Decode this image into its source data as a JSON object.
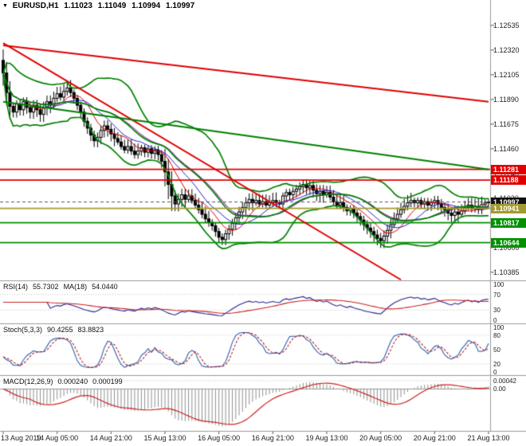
{
  "chart_data": {
    "type": "candlestick",
    "title": "EURUSD,H1",
    "header": {
      "symbol": "EURUSD,H1",
      "open": "1.11023",
      "high": "1.11049",
      "low": "1.10994",
      "close": "1.10997"
    },
    "y_axis": {
      "ticks": [
        "1.12535",
        "1.12320",
        "1.12105",
        "1.11890",
        "1.11675",
        "1.11460",
        "1.11245",
        "1.11030",
        "1.10815",
        "1.10600",
        "1.10385"
      ]
    },
    "x_labels": [
      {
        "label": "13 Aug 2019",
        "bar": 0
      },
      {
        "label": "14 Aug 05:00",
        "bar": 16
      },
      {
        "label": "14 Aug 21:00",
        "bar": 32
      },
      {
        "label": "15 Aug 13:00",
        "bar": 48
      },
      {
        "label": "16 Aug 05:00",
        "bar": 64
      },
      {
        "label": "16 Aug 21:00",
        "bar": 80
      },
      {
        "label": "19 Aug 13:00",
        "bar": 96
      },
      {
        "label": "20 Aug 05:00",
        "bar": 112
      },
      {
        "label": "20 Aug 21:00",
        "bar": 128
      },
      {
        "label": "21 Aug 13:00",
        "bar": 144
      }
    ],
    "first_open": 1.1223,
    "closes": [
      1.1212,
      1.1195,
      1.1183,
      1.1178,
      1.1185,
      1.118,
      1.1187,
      1.1182,
      1.1178,
      1.1184,
      1.118,
      1.1176,
      1.1182,
      1.1187,
      1.1184,
      1.119,
      1.1194,
      1.1191,
      1.1196,
      1.1199,
      1.1195,
      1.119,
      1.1184,
      1.1178,
      1.117,
      1.1164,
      1.1158,
      1.1153,
      1.1156,
      1.1162,
      1.1166,
      1.1163,
      1.1159,
      1.1155,
      1.1152,
      1.1148,
      1.1145,
      1.1148,
      1.1144,
      1.1141,
      1.1144,
      1.1147,
      1.1143,
      1.1146,
      1.1142,
      1.1145,
      1.1141,
      1.1135,
      1.1126,
      1.1115,
      1.1105,
      1.1098,
      1.1102,
      1.1106,
      1.1102,
      1.1105,
      1.1101,
      1.1097,
      1.1093,
      1.1089,
      1.1085,
      1.1082,
      1.1079,
      1.1074,
      1.1069,
      1.1067,
      1.1072,
      1.1076,
      1.1081,
      1.1086,
      1.1091,
      1.1095,
      1.1099,
      1.1102,
      1.1099,
      1.1101,
      1.1098,
      1.11,
      1.1097,
      1.1099,
      1.1101,
      1.1099,
      1.1098,
      1.1105,
      1.1108,
      1.1106,
      1.1109,
      1.1111,
      1.1113,
      1.1115,
      1.1112,
      1.1114,
      1.111,
      1.1107,
      1.1109,
      1.1106,
      1.1108,
      1.1104,
      1.11,
      1.1097,
      1.1099,
      1.1095,
      1.1092,
      1.1094,
      1.109,
      1.1087,
      1.1084,
      1.108,
      1.1077,
      1.1074,
      1.1071,
      1.1068,
      1.1066,
      1.107,
      1.1075,
      1.108,
      1.1085,
      1.1089,
      1.1093,
      1.1096,
      1.1099,
      1.1101,
      1.1099,
      1.1101,
      1.1098,
      1.11,
      1.1097,
      1.1099,
      1.1101,
      1.1098,
      1.1095,
      1.1093,
      1.109,
      1.1088,
      1.1091,
      1.1089,
      1.1092,
      1.1095,
      1.1097,
      1.1094,
      1.1096,
      1.1093,
      1.10975,
      1.1099,
      1.10997
    ],
    "badges": [
      {
        "label": "1.11281",
        "price": 1.11281,
        "color": "#e00000"
      },
      {
        "label": "1.11188",
        "price": 1.11188,
        "color": "#e00000"
      },
      {
        "label": "1.10997",
        "price": 1.10997,
        "color": "#111111"
      },
      {
        "label": "1.10941",
        "price": 1.10941,
        "color": "#a39b2f"
      },
      {
        "label": "1.10817",
        "price": 1.10817,
        "color": "#009000"
      },
      {
        "label": "1.10644",
        "price": 1.10644,
        "color": "#009000"
      }
    ],
    "levels": [
      {
        "price": 1.11281,
        "color": "#e00000"
      },
      {
        "price": 1.11188,
        "color": "#e00000"
      },
      {
        "price": 1.10941,
        "color": "#a39b2f"
      },
      {
        "price": 1.10817,
        "color": "#009000"
      },
      {
        "price": 1.10644,
        "color": "#009000"
      }
    ],
    "bid_price": 1.10997,
    "trendlines": [
      {
        "b1": 0,
        "p1": 1.1238,
        "b2": 118,
        "p2": 1.1032,
        "color": "#e00000",
        "width": 2
      },
      {
        "b1": 0,
        "p1": 1.1236,
        "b2": 144,
        "p2": 1.1187,
        "color": "#e00000",
        "width": 2
      },
      {
        "b1": 0,
        "p1": 1.1187,
        "b2": 144,
        "p2": 1.1128,
        "color": "#008000",
        "width": 2
      }
    ],
    "overlays": {
      "bollinger": {
        "period": 20,
        "deviation": 2,
        "color": "#008000",
        "width": 1.7
      },
      "moving_averages": [
        {
          "period": 8,
          "color": "#dd0000"
        },
        {
          "period": 13,
          "color": "#2020cc"
        },
        {
          "period": 21,
          "color": "#8800aa"
        }
      ]
    },
    "indicators": {
      "rsi": {
        "name": "RSI(14)",
        "value": "55.7302",
        "ma_name": "MA(18)",
        "ma_value": "54.0440",
        "period": 14,
        "ma_period": 18,
        "color": "#26268c",
        "ma_color": "#cc2222",
        "levels": [
          70,
          30
        ],
        "ticks": [
          "100",
          "70",
          "30",
          "0"
        ]
      },
      "stoch": {
        "name": "Stoch(5,3,3)",
        "k_value": "90.4255",
        "d_value": "83.8823",
        "k_period": 5,
        "slowing": 3,
        "d_period": 3,
        "color": "#2f5fae",
        "signal_color": "#b22222",
        "levels": [
          80,
          20
        ],
        "ticks": [
          "100",
          "80",
          "50",
          "20",
          "0"
        ]
      },
      "macd": {
        "name": "MACD(12,26,9)",
        "value": "0.000240",
        "signal_value": "0.000199",
        "fast": 12,
        "slow": 26,
        "signal": 9,
        "hist_color": "#909090",
        "signal_color": "#cc2222",
        "ticks": [
          {
            "value": 0.00042,
            "label": "0.00042"
          },
          {
            "value": 0,
            "label": "0.00"
          }
        ]
      }
    },
    "style": {
      "candle_up": "#ffffff",
      "candle_down": "#000000",
      "candle_outline": "#000000",
      "separator": "#9a9a9a",
      "axis_text": "#222222",
      "bid_line": "#555555"
    }
  }
}
